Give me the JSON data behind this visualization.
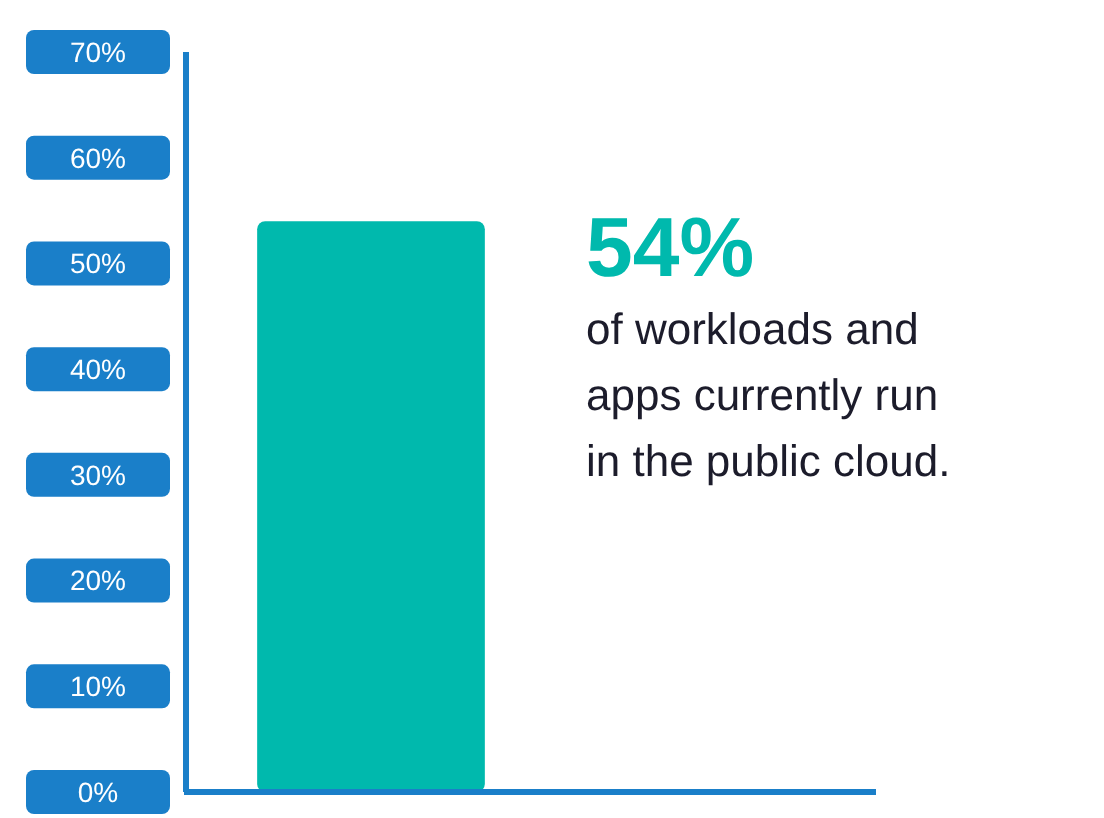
{
  "chart_data": {
    "type": "bar",
    "categories": [
      null
    ],
    "values": [
      54
    ],
    "color": "#00b9ad",
    "ylim": [
      0,
      70
    ],
    "yticks": [
      {
        "value": 0,
        "label": "0%"
      },
      {
        "value": 10,
        "label": "10%"
      },
      {
        "value": 20,
        "label": "20%"
      },
      {
        "value": 30,
        "label": "30%"
      },
      {
        "value": 40,
        "label": "40%"
      },
      {
        "value": 50,
        "label": "50%"
      },
      {
        "value": 60,
        "label": "60%"
      },
      {
        "value": 70,
        "label": "70%"
      }
    ],
    "grid": false,
    "annotations": [
      "54%",
      "of workloads and apps currently run in the public cloud."
    ]
  }
}
